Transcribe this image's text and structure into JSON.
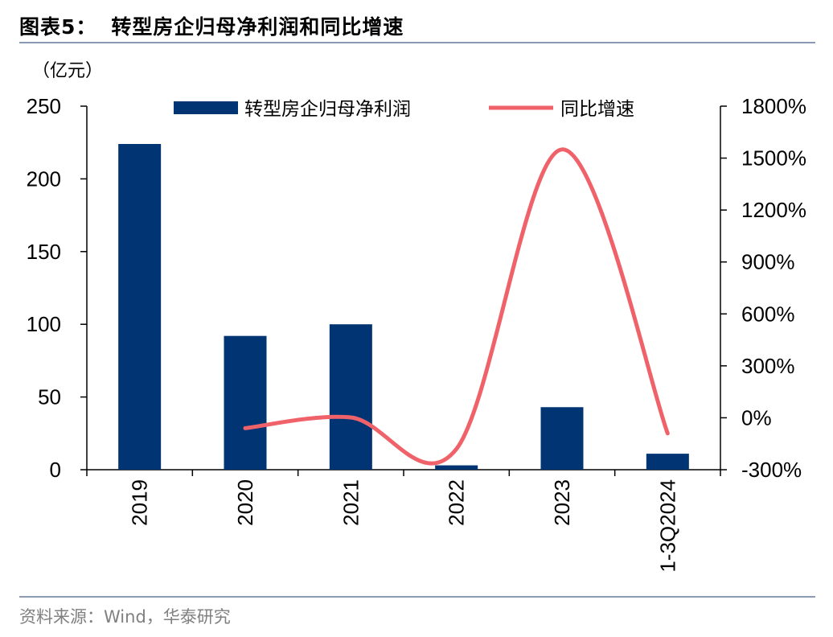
{
  "figure": {
    "number": "图表5：",
    "title": "转型房企归母净利润和同比增速",
    "unit_label": "（亿元）",
    "source": "资料来源：Wind，华泰研究"
  },
  "chart_data": {
    "type": "bar",
    "categories": [
      "2019",
      "2020",
      "2021",
      "2022",
      "2023",
      "1-3Q2024"
    ],
    "series": [
      {
        "name": "转型房企归母净利润",
        "type": "bar",
        "axis": "left",
        "color": "#003473",
        "values": [
          224,
          92,
          100,
          3,
          43,
          11
        ]
      },
      {
        "name": "同比增速",
        "type": "line",
        "axis": "right",
        "color": "#f0626a",
        "values": [
          null,
          -60,
          2,
          -180,
          1550,
          -90
        ]
      }
    ],
    "y_left": {
      "min": 0,
      "max": 250,
      "ticks": [
        0,
        50,
        100,
        150,
        200,
        250
      ]
    },
    "y_right": {
      "min": -300,
      "max": 1800,
      "ticks": [
        -300,
        0,
        300,
        600,
        900,
        1200,
        1500,
        1800
      ],
      "tick_labels": [
        "-300%",
        "0%",
        "300%",
        "600%",
        "900%",
        "1200%",
        "1500%",
        "1800%"
      ]
    },
    "legend_position": "top",
    "grid": false
  }
}
